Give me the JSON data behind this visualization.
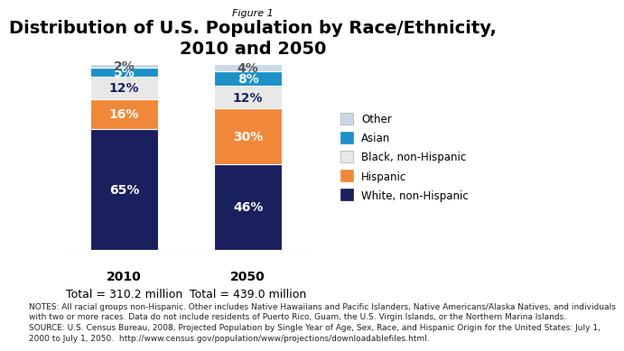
{
  "figure_label": "Figure 1",
  "title": "Distribution of U.S. Population by Race/Ethnicity,\n2010 and 2050",
  "years": [
    "2010",
    "2050"
  ],
  "totals": [
    "Total = 310.2 million",
    "Total = 439.0 million"
  ],
  "categories": [
    "White, non-Hispanic",
    "Hispanic",
    "Black, non-Hispanic",
    "Asian",
    "Other"
  ],
  "colors": [
    "#1a1f5e",
    "#f0883a",
    "#e8e8e8",
    "#1e90c8",
    "#c8d8e8"
  ],
  "values_2010": [
    65,
    16,
    12,
    5,
    2
  ],
  "values_2050": [
    46,
    30,
    12,
    8,
    4
  ],
  "bar_width": 0.55,
  "notes_line1": "NOTES: All racial groups non-Hispanic. Other includes Native Hawaiians and Pacific Islanders, Native Americans/Alaska Natives, and individuals",
  "notes_line2": "with two or more races. Data do not include residents of Puerto Rico, Guam, the U.S. Virgin Islands, or the Northern Marina Islands.",
  "notes_line3": "SOURCE: U.S. Census Bureau, 2008, Projected Population by Single Year of Age, Sex, Race, and Hispanic Origin for the United States: July 1,",
  "notes_line4": "2000 to July 1, 2050.  http://www.census.gov/population/www/projections/downloadablefiles.html.",
  "legend_labels": [
    "Other",
    "Asian",
    "Black, non-Hispanic",
    "Hispanic",
    "White, non-Hispanic"
  ],
  "legend_colors": [
    "#c8d8e8",
    "#1e90c8",
    "#e8e8e8",
    "#f0883a",
    "#1a1f5e"
  ],
  "title_fontsize": 14,
  "bar_label_fontsize": 10,
  "notes_fontsize": 6.5,
  "year_label_fontsize": 10,
  "total_label_fontsize": 9
}
